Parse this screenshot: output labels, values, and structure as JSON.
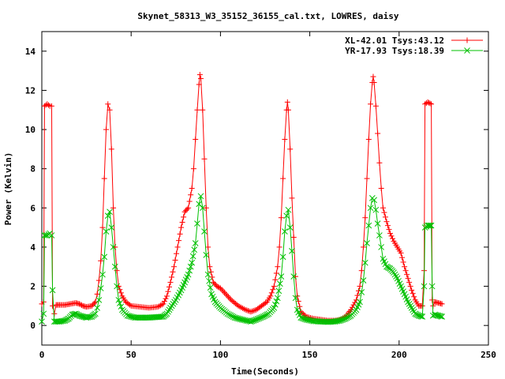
{
  "chart_data": {
    "type": "line",
    "title": "Skynet_58313_W3_35152_36155_cal.txt, LOWRES, daisy",
    "xlabel": "Time(Seconds)",
    "ylabel": "Power (Kelvin)",
    "xlim": [
      0,
      250
    ],
    "ylim": [
      -1,
      15
    ],
    "xticks": [
      0,
      50,
      100,
      150,
      200,
      250
    ],
    "yticks": [
      0,
      2,
      4,
      6,
      8,
      10,
      12,
      14
    ],
    "grid": false,
    "legend_position": "top-right",
    "series": [
      {
        "name": "XL-42.01 Tsys:43.12",
        "color": "#ff0000",
        "marker": "plus",
        "points": [
          [
            0,
            1.1
          ],
          [
            1,
            1.2
          ],
          [
            1.5,
            11.2
          ],
          [
            3,
            11.3
          ],
          [
            4.5,
            11.2
          ],
          [
            5.5,
            11.2
          ],
          [
            6,
            1.0
          ],
          [
            7,
            0.6
          ],
          [
            8,
            1.05
          ],
          [
            10,
            1.05
          ],
          [
            13,
            1.05
          ],
          [
            16,
            1.1
          ],
          [
            19,
            1.15
          ],
          [
            21,
            1.1
          ],
          [
            23,
            1.0
          ],
          [
            25,
            0.95
          ],
          [
            28,
            1.0
          ],
          [
            30,
            1.2
          ],
          [
            31,
            1.6
          ],
          [
            32,
            2.3
          ],
          [
            33,
            3.3
          ],
          [
            34,
            5.0
          ],
          [
            35,
            7.5
          ],
          [
            36,
            10.0
          ],
          [
            37,
            11.3
          ],
          [
            38,
            11.0
          ],
          [
            39,
            9.0
          ],
          [
            40,
            6.0
          ],
          [
            41,
            4.0
          ],
          [
            42,
            2.8
          ],
          [
            43,
            2.0
          ],
          [
            45,
            1.5
          ],
          [
            47,
            1.2
          ],
          [
            50,
            1.0
          ],
          [
            55,
            0.95
          ],
          [
            60,
            0.9
          ],
          [
            65,
            0.95
          ],
          [
            68,
            1.1
          ],
          [
            70,
            1.5
          ],
          [
            72,
            2.2
          ],
          [
            74,
            3.0
          ],
          [
            76,
            4.0
          ],
          [
            78,
            5.0
          ],
          [
            80,
            5.8
          ],
          [
            82,
            6.0
          ],
          [
            84,
            7.0
          ],
          [
            85,
            8.0
          ],
          [
            86,
            9.5
          ],
          [
            87,
            11.0
          ],
          [
            88,
            12.3
          ],
          [
            88.5,
            12.8
          ],
          [
            89,
            12.6
          ],
          [
            90,
            11.0
          ],
          [
            91,
            8.5
          ],
          [
            92,
            6.0
          ],
          [
            93,
            4.0
          ],
          [
            94,
            3.0
          ],
          [
            96,
            2.2
          ],
          [
            98,
            2.0
          ],
          [
            100,
            1.9
          ],
          [
            103,
            1.6
          ],
          [
            106,
            1.3
          ],
          [
            110,
            1.0
          ],
          [
            114,
            0.8
          ],
          [
            117,
            0.7
          ],
          [
            120,
            0.8
          ],
          [
            123,
            1.0
          ],
          [
            126,
            1.2
          ],
          [
            128,
            1.5
          ],
          [
            130,
            2.0
          ],
          [
            132,
            3.0
          ],
          [
            133,
            4.0
          ],
          [
            134,
            5.5
          ],
          [
            135,
            7.5
          ],
          [
            136,
            9.5
          ],
          [
            137,
            11.0
          ],
          [
            137.5,
            11.4
          ],
          [
            138,
            11.0
          ],
          [
            139,
            9.0
          ],
          [
            140,
            6.5
          ],
          [
            141,
            4.5
          ],
          [
            142,
            2.5
          ],
          [
            143,
            1.5
          ],
          [
            145,
            0.7
          ],
          [
            148,
            0.45
          ],
          [
            152,
            0.35
          ],
          [
            156,
            0.3
          ],
          [
            160,
            0.25
          ],
          [
            164,
            0.25
          ],
          [
            167,
            0.3
          ],
          [
            170,
            0.45
          ],
          [
            173,
            0.8
          ],
          [
            176,
            1.3
          ],
          [
            178,
            2.0
          ],
          [
            179,
            2.8
          ],
          [
            180,
            4.0
          ],
          [
            181,
            5.5
          ],
          [
            182,
            7.5
          ],
          [
            183,
            9.5
          ],
          [
            184,
            11.3
          ],
          [
            185,
            12.4
          ],
          [
            185.5,
            12.7
          ],
          [
            186,
            12.4
          ],
          [
            187,
            11.2
          ],
          [
            188,
            9.8
          ],
          [
            189,
            8.3
          ],
          [
            190,
            7.0
          ],
          [
            191,
            6.0
          ],
          [
            193,
            5.3
          ],
          [
            195,
            4.7
          ],
          [
            197,
            4.3
          ],
          [
            199,
            4.0
          ],
          [
            201,
            3.7
          ],
          [
            203,
            3.0
          ],
          [
            205,
            2.4
          ],
          [
            207,
            1.8
          ],
          [
            209,
            1.3
          ],
          [
            211,
            1.0
          ],
          [
            213,
            1.0
          ],
          [
            214,
            2.8
          ],
          [
            214.5,
            11.3
          ],
          [
            216,
            11.4
          ],
          [
            218,
            11.3
          ],
          [
            218.5,
            1.3
          ],
          [
            219,
            1.0
          ],
          [
            220,
            1.2
          ],
          [
            222,
            1.15
          ],
          [
            224,
            1.1
          ]
        ]
      },
      {
        "name": "YR-17.93 Tsys:18.39",
        "color": "#00c000",
        "marker": "cross",
        "points": [
          [
            0,
            0.2
          ],
          [
            1,
            0.6
          ],
          [
            1.5,
            4.6
          ],
          [
            3,
            4.6
          ],
          [
            4.5,
            4.7
          ],
          [
            5.5,
            4.6
          ],
          [
            6,
            1.8
          ],
          [
            7,
            0.2
          ],
          [
            10,
            0.2
          ],
          [
            13,
            0.25
          ],
          [
            15,
            0.35
          ],
          [
            17,
            0.55
          ],
          [
            19,
            0.6
          ],
          [
            21,
            0.5
          ],
          [
            23,
            0.45
          ],
          [
            25,
            0.4
          ],
          [
            28,
            0.45
          ],
          [
            30,
            0.6
          ],
          [
            31,
            0.9
          ],
          [
            32,
            1.3
          ],
          [
            33,
            1.9
          ],
          [
            34,
            2.6
          ],
          [
            35,
            3.5
          ],
          [
            36,
            4.8
          ],
          [
            37,
            5.6
          ],
          [
            38,
            5.8
          ],
          [
            39,
            5.0
          ],
          [
            40,
            4.0
          ],
          [
            41,
            3.0
          ],
          [
            42,
            2.0
          ],
          [
            43,
            1.3
          ],
          [
            45,
            0.8
          ],
          [
            48,
            0.5
          ],
          [
            52,
            0.4
          ],
          [
            60,
            0.4
          ],
          [
            68,
            0.45
          ],
          [
            70,
            0.6
          ],
          [
            72,
            0.9
          ],
          [
            75,
            1.3
          ],
          [
            78,
            1.8
          ],
          [
            80,
            2.2
          ],
          [
            82,
            2.6
          ],
          [
            84,
            3.2
          ],
          [
            86,
            4.2
          ],
          [
            87,
            5.2
          ],
          [
            88,
            6.2
          ],
          [
            89,
            6.6
          ],
          [
            90,
            6.0
          ],
          [
            91,
            4.8
          ],
          [
            92,
            3.6
          ],
          [
            93,
            2.6
          ],
          [
            95,
            1.6
          ],
          [
            97,
            1.2
          ],
          [
            100,
            0.9
          ],
          [
            104,
            0.6
          ],
          [
            108,
            0.4
          ],
          [
            112,
            0.3
          ],
          [
            117,
            0.2
          ],
          [
            120,
            0.3
          ],
          [
            124,
            0.45
          ],
          [
            127,
            0.6
          ],
          [
            130,
            0.9
          ],
          [
            132,
            1.4
          ],
          [
            134,
            2.5
          ],
          [
            135,
            3.5
          ],
          [
            136,
            4.8
          ],
          [
            137,
            5.6
          ],
          [
            138,
            5.9
          ],
          [
            139,
            5.0
          ],
          [
            140,
            3.8
          ],
          [
            141,
            2.5
          ],
          [
            142,
            1.4
          ],
          [
            143,
            0.8
          ],
          [
            145,
            0.4
          ],
          [
            148,
            0.3
          ],
          [
            152,
            0.22
          ],
          [
            156,
            0.2
          ],
          [
            160,
            0.18
          ],
          [
            164,
            0.2
          ],
          [
            167,
            0.25
          ],
          [
            170,
            0.35
          ],
          [
            173,
            0.5
          ],
          [
            176,
            0.8
          ],
          [
            178,
            1.2
          ],
          [
            179,
            1.7
          ],
          [
            180,
            2.3
          ],
          [
            181,
            3.2
          ],
          [
            182,
            4.2
          ],
          [
            183,
            5.1
          ],
          [
            184,
            6.0
          ],
          [
            185,
            6.5
          ],
          [
            186,
            6.4
          ],
          [
            187,
            5.9
          ],
          [
            188,
            5.2
          ],
          [
            189,
            4.6
          ],
          [
            190,
            4.0
          ],
          [
            191,
            3.4
          ],
          [
            193,
            3.0
          ],
          [
            195,
            2.9
          ],
          [
            197,
            2.7
          ],
          [
            199,
            2.4
          ],
          [
            201,
            2.0
          ],
          [
            203,
            1.6
          ],
          [
            205,
            1.2
          ],
          [
            207,
            0.9
          ],
          [
            209,
            0.6
          ],
          [
            211,
            0.5
          ],
          [
            213,
            0.45
          ],
          [
            214,
            2.0
          ],
          [
            214.5,
            5.0
          ],
          [
            216,
            5.1
          ],
          [
            218,
            5.1
          ],
          [
            218.5,
            2.0
          ],
          [
            219,
            0.5
          ],
          [
            220,
            0.55
          ],
          [
            222,
            0.5
          ],
          [
            224,
            0.45
          ]
        ]
      }
    ]
  }
}
